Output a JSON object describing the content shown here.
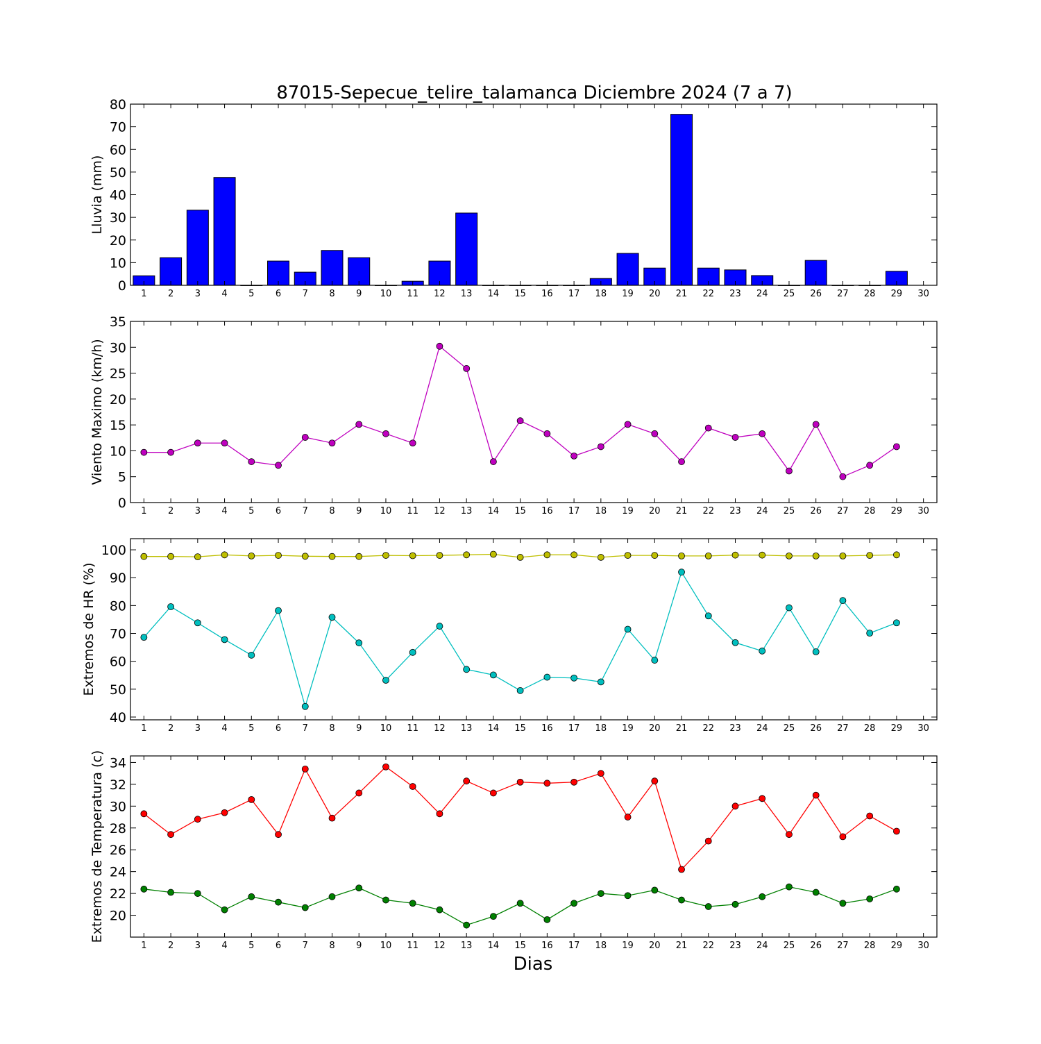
{
  "title": "87015-Sepecue_telire_talamanca Diciembre 2024  (7 a 7)",
  "xlabel": "Dias",
  "chart_data": [
    {
      "type": "bar",
      "ylabel": "Lluvia (mm)",
      "ylim": [
        0,
        80
      ],
      "yticks": [
        0,
        10,
        20,
        30,
        40,
        50,
        60,
        70,
        80
      ],
      "xlim": [
        0.5,
        30.5
      ],
      "xticks": [
        1,
        2,
        3,
        4,
        5,
        6,
        7,
        8,
        9,
        10,
        11,
        12,
        13,
        14,
        15,
        16,
        17,
        18,
        19,
        20,
        21,
        22,
        23,
        24,
        25,
        26,
        27,
        28,
        29,
        30
      ],
      "series": [
        {
          "color": "#0000ff",
          "x": [
            1,
            2,
            3,
            4,
            5,
            6,
            7,
            8,
            9,
            10,
            11,
            12,
            13,
            14,
            15,
            16,
            17,
            18,
            19,
            20,
            21,
            22,
            23,
            24,
            25,
            26,
            27,
            28,
            29
          ],
          "values": [
            4.2,
            12.2,
            33.2,
            47.6,
            0,
            10.7,
            5.8,
            15.4,
            12.2,
            0,
            1.8,
            10.7,
            31.9,
            0,
            0,
            0,
            0,
            3.0,
            14.1,
            7.6,
            75.5,
            7.6,
            6.8,
            4.3,
            0,
            11.0,
            0,
            0,
            6.2
          ]
        }
      ]
    },
    {
      "type": "line",
      "ylabel": "Viento Maximo (km/h)",
      "ylim": [
        0,
        35
      ],
      "yticks": [
        0,
        5,
        10,
        15,
        20,
        25,
        30,
        35
      ],
      "xlim": [
        0.5,
        30.5
      ],
      "xticks": [
        1,
        2,
        3,
        4,
        5,
        6,
        7,
        8,
        9,
        10,
        11,
        12,
        13,
        14,
        15,
        16,
        17,
        18,
        19,
        20,
        21,
        22,
        23,
        24,
        25,
        26,
        27,
        28,
        29,
        30
      ],
      "series": [
        {
          "color": "#bf00bf",
          "x": [
            1,
            2,
            3,
            4,
            5,
            6,
            7,
            8,
            9,
            10,
            11,
            12,
            13,
            14,
            15,
            16,
            17,
            18,
            19,
            20,
            21,
            22,
            23,
            24,
            25,
            26,
            27,
            28,
            29
          ],
          "values": [
            9.7,
            9.7,
            11.5,
            11.5,
            7.9,
            7.2,
            12.6,
            11.5,
            15.1,
            13.3,
            11.5,
            30.2,
            25.9,
            7.9,
            15.8,
            13.3,
            9.0,
            10.8,
            15.1,
            13.3,
            7.9,
            14.4,
            12.6,
            13.3,
            6.1,
            15.1,
            5.0,
            7.2,
            10.8
          ]
        }
      ]
    },
    {
      "type": "line",
      "ylabel": "Extremos de HR (%)",
      "ylim": [
        39,
        104
      ],
      "yticks": [
        40,
        50,
        60,
        70,
        80,
        90,
        100
      ],
      "xlim": [
        0.5,
        30.5
      ],
      "xticks": [
        1,
        2,
        3,
        4,
        5,
        6,
        7,
        8,
        9,
        10,
        11,
        12,
        13,
        14,
        15,
        16,
        17,
        18,
        19,
        20,
        21,
        22,
        23,
        24,
        25,
        26,
        27,
        28,
        29,
        30
      ],
      "series": [
        {
          "color": "#bfbf00",
          "x": [
            1,
            2,
            3,
            4,
            5,
            6,
            7,
            8,
            9,
            10,
            11,
            12,
            13,
            14,
            15,
            16,
            17,
            18,
            19,
            20,
            21,
            22,
            23,
            24,
            25,
            26,
            27,
            28,
            29
          ],
          "values": [
            97.6,
            97.6,
            97.5,
            98.2,
            97.8,
            98.0,
            97.7,
            97.6,
            97.6,
            98.0,
            97.9,
            98.0,
            98.2,
            98.4,
            97.3,
            98.2,
            98.2,
            97.3,
            98.0,
            98.0,
            97.8,
            97.8,
            98.1,
            98.1,
            97.8,
            97.8,
            97.8,
            98.0,
            98.2
          ]
        },
        {
          "color": "#00bfbf",
          "x": [
            1,
            2,
            3,
            4,
            5,
            6,
            7,
            8,
            9,
            10,
            11,
            12,
            13,
            14,
            15,
            16,
            17,
            18,
            19,
            20,
            21,
            22,
            23,
            24,
            25,
            26,
            27,
            28,
            29
          ],
          "values": [
            68.6,
            79.6,
            73.8,
            67.8,
            62.2,
            78.2,
            43.8,
            75.8,
            66.6,
            53.2,
            63.2,
            72.6,
            57.1,
            55.1,
            49.5,
            54.3,
            54.0,
            52.6,
            71.5,
            60.4,
            92.0,
            76.3,
            66.7,
            63.7,
            79.2,
            63.4,
            81.8,
            70.1,
            73.8
          ]
        }
      ]
    },
    {
      "type": "line",
      "ylabel": "Extremos de Temperatura (c)",
      "ylim": [
        18,
        34.6
      ],
      "yticks": [
        20,
        22,
        24,
        26,
        28,
        30,
        32,
        34
      ],
      "xlim": [
        0.5,
        30.5
      ],
      "xticks": [
        1,
        2,
        3,
        4,
        5,
        6,
        7,
        8,
        9,
        10,
        11,
        12,
        13,
        14,
        15,
        16,
        17,
        18,
        19,
        20,
        21,
        22,
        23,
        24,
        25,
        26,
        27,
        28,
        29,
        30
      ],
      "series": [
        {
          "color": "#ff0000",
          "x": [
            1,
            2,
            3,
            4,
            5,
            6,
            7,
            8,
            9,
            10,
            11,
            12,
            13,
            14,
            15,
            16,
            17,
            18,
            19,
            20,
            21,
            22,
            23,
            24,
            25,
            26,
            27,
            28,
            29
          ],
          "values": [
            29.3,
            27.4,
            28.8,
            29.4,
            30.6,
            27.4,
            33.4,
            28.9,
            31.2,
            33.6,
            31.8,
            29.3,
            32.3,
            31.2,
            32.2,
            32.1,
            32.2,
            33.0,
            29.0,
            32.3,
            24.2,
            26.8,
            30.0,
            30.7,
            27.4,
            31.0,
            27.2,
            29.1,
            27.7
          ]
        },
        {
          "color": "#008000",
          "x": [
            1,
            2,
            3,
            4,
            5,
            6,
            7,
            8,
            9,
            10,
            11,
            12,
            13,
            14,
            15,
            16,
            17,
            18,
            19,
            20,
            21,
            22,
            23,
            24,
            25,
            26,
            27,
            28,
            29
          ],
          "values": [
            22.4,
            22.1,
            22.0,
            20.5,
            21.7,
            21.2,
            20.7,
            21.7,
            22.5,
            21.4,
            21.1,
            20.5,
            19.1,
            19.9,
            21.1,
            19.6,
            21.1,
            22.0,
            21.8,
            22.3,
            21.4,
            20.8,
            21.0,
            21.7,
            22.6,
            22.1,
            21.1,
            21.5,
            22.4
          ]
        }
      ]
    }
  ]
}
